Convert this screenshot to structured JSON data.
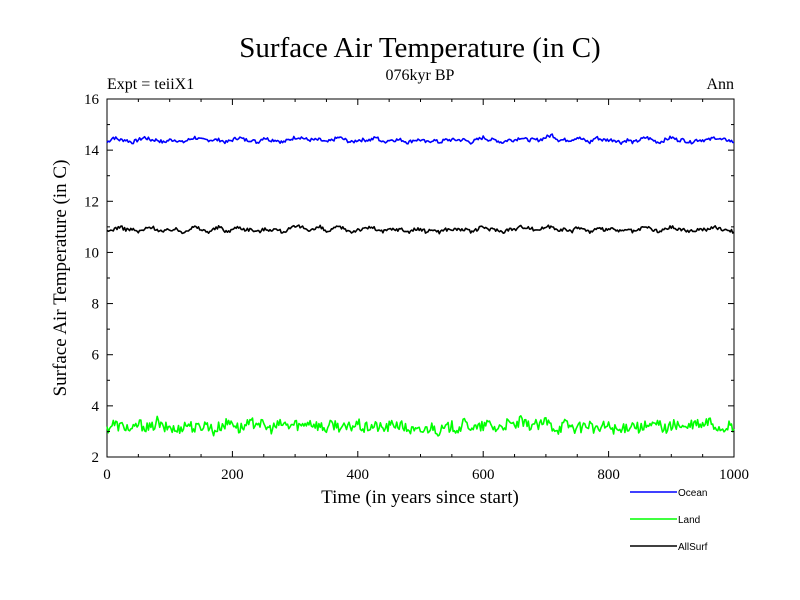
{
  "chart_data": {
    "type": "line",
    "title": "Surface Air Temperature (in C)",
    "subtitle": "076kyr BP",
    "left_note": "Expt = teiiX1",
    "right_note": "Ann",
    "xlabel": "Time (in years since start)",
    "ylabel": "Surface Air Temperature (in C)",
    "xlim": [
      0,
      1000
    ],
    "ylim": [
      2,
      16
    ],
    "x_ticks": [
      0,
      200,
      400,
      600,
      800,
      1000
    ],
    "y_ticks": [
      2,
      4,
      6,
      8,
      10,
      12,
      14,
      16
    ],
    "grid": false,
    "legend_position": "below-right",
    "series": [
      {
        "name": "Ocean",
        "color": "#0000ff",
        "mean": 14.4,
        "x_step": 10,
        "values": [
          14.3,
          14.5,
          14.4,
          14.4,
          14.3,
          14.4,
          14.5,
          14.4,
          14.4,
          14.3,
          14.4,
          14.4,
          14.3,
          14.4,
          14.5,
          14.4,
          14.4,
          14.4,
          14.4,
          14.3,
          14.4,
          14.5,
          14.4,
          14.4,
          14.3,
          14.5,
          14.4,
          14.4,
          14.3,
          14.4,
          14.5,
          14.5,
          14.4,
          14.4,
          14.4,
          14.3,
          14.4,
          14.5,
          14.4,
          14.3,
          14.4,
          14.4,
          14.4,
          14.5,
          14.3,
          14.4,
          14.4,
          14.4,
          14.3,
          14.4,
          14.4,
          14.3,
          14.4,
          14.3,
          14.4,
          14.4,
          14.4,
          14.4,
          14.3,
          14.4,
          14.5,
          14.4,
          14.4,
          14.3,
          14.4,
          14.4,
          14.5,
          14.4,
          14.4,
          14.4,
          14.5,
          14.6,
          14.4,
          14.4,
          14.4,
          14.5,
          14.4,
          14.3,
          14.5,
          14.4,
          14.4,
          14.4,
          14.3,
          14.4,
          14.3,
          14.4,
          14.5,
          14.4,
          14.3,
          14.4,
          14.5,
          14.4,
          14.4,
          14.3,
          14.4,
          14.4,
          14.4,
          14.5,
          14.4,
          14.4,
          14.3
        ]
      },
      {
        "name": "Land",
        "color": "#00ff00",
        "mean": 3.2,
        "x_step": 10,
        "values": [
          3.1,
          3.3,
          3.2,
          3.2,
          3.0,
          3.3,
          3.2,
          3.1,
          3.4,
          3.1,
          3.2,
          3.0,
          3.2,
          3.3,
          3.1,
          3.2,
          3.3,
          3.0,
          3.2,
          3.3,
          3.4,
          3.1,
          3.2,
          3.3,
          3.4,
          3.2,
          3.1,
          3.2,
          3.3,
          3.2,
          3.3,
          3.2,
          3.4,
          3.3,
          3.2,
          3.1,
          3.3,
          3.2,
          3.1,
          3.2,
          3.3,
          3.1,
          3.2,
          3.2,
          3.1,
          3.2,
          3.3,
          3.2,
          3.1,
          3.0,
          3.0,
          3.1,
          3.2,
          3.0,
          3.1,
          3.2,
          3.1,
          3.3,
          3.2,
          3.1,
          3.2,
          3.3,
          3.1,
          3.2,
          3.3,
          3.2,
          3.4,
          3.2,
          3.3,
          3.2,
          3.4,
          3.2,
          3.1,
          3.3,
          3.2,
          3.1,
          3.2,
          3.3,
          3.0,
          3.2,
          3.2,
          3.1,
          3.0,
          3.2,
          3.3,
          3.1,
          3.2,
          3.2,
          3.3,
          3.1,
          3.2,
          3.3,
          3.1,
          3.2,
          3.3,
          3.2,
          3.4,
          3.2,
          3.1,
          3.2,
          3.1
        ]
      },
      {
        "name": "AllSurf",
        "color": "#000000",
        "mean": 10.9,
        "x_step": 10,
        "values": [
          10.8,
          10.9,
          11.0,
          10.9,
          10.9,
          10.8,
          10.9,
          11.0,
          10.9,
          10.8,
          10.9,
          10.9,
          10.8,
          10.9,
          11.0,
          10.9,
          10.8,
          10.9,
          11.0,
          10.8,
          10.9,
          11.0,
          10.9,
          10.9,
          10.8,
          10.9,
          10.9,
          10.9,
          10.8,
          10.9,
          11.0,
          11.0,
          10.9,
          10.9,
          11.0,
          10.8,
          10.9,
          11.0,
          10.9,
          10.8,
          10.9,
          10.9,
          11.0,
          10.9,
          10.8,
          10.9,
          10.9,
          10.9,
          10.8,
          10.9,
          10.9,
          10.8,
          10.9,
          10.8,
          10.9,
          10.9,
          10.9,
          10.9,
          10.8,
          10.9,
          11.0,
          10.9,
          10.9,
          10.8,
          10.9,
          10.9,
          11.0,
          11.0,
          10.9,
          10.9,
          11.0,
          11.0,
          10.9,
          10.9,
          10.8,
          11.0,
          10.9,
          10.8,
          10.9,
          10.9,
          10.9,
          10.9,
          10.8,
          10.9,
          10.8,
          10.9,
          11.0,
          10.9,
          10.8,
          10.9,
          11.0,
          10.9,
          10.9,
          10.8,
          10.9,
          10.9,
          10.9,
          11.0,
          10.9,
          10.9,
          10.8
        ]
      }
    ]
  }
}
